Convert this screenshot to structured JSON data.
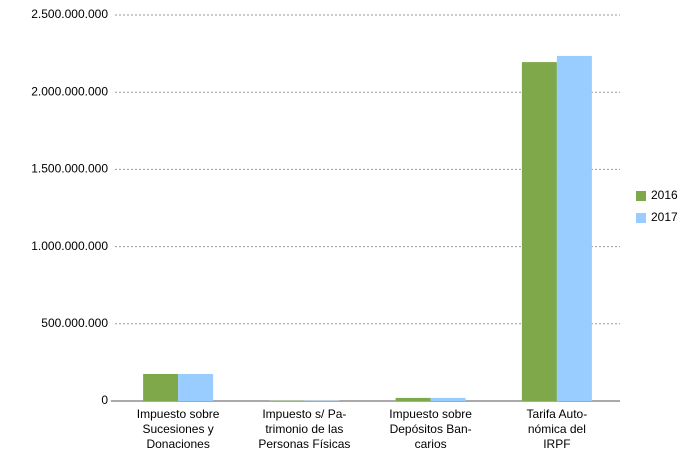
{
  "chart_data": {
    "type": "bar",
    "categories": [
      [
        "Impuesto sobre",
        "Sucesiones y",
        "Donaciones"
      ],
      [
        "Impuesto s/ Pa-",
        "trimonio de las",
        "Personas Físicas"
      ],
      [
        "Impuesto sobre",
        "Depósitos Ban-",
        "carios"
      ],
      [
        "Tarifa Auto-",
        "nómica del",
        "IRPF"
      ]
    ],
    "series": [
      {
        "name": "2016",
        "color": "#7ea84a",
        "values": [
          175000000,
          2000000,
          20000000,
          2195000000
        ]
      },
      {
        "name": "2017",
        "color": "#99ccff",
        "values": [
          175000000,
          2000000,
          20000000,
          2235000000
        ]
      }
    ],
    "ylim": [
      0,
      2500000000
    ],
    "yticks": [
      0,
      {
        "value": 500000000,
        "label": "500.000.000"
      },
      {
        "value": 1000000000,
        "label": "1.000.000.000"
      },
      {
        "value": 1500000000,
        "label": "1.500.000.000"
      },
      {
        "value": 2000000000,
        "label": "2.000.000.000"
      },
      {
        "value": 2500000000,
        "label": "2.500.000.000"
      }
    ],
    "grid": true,
    "legend": "right"
  }
}
